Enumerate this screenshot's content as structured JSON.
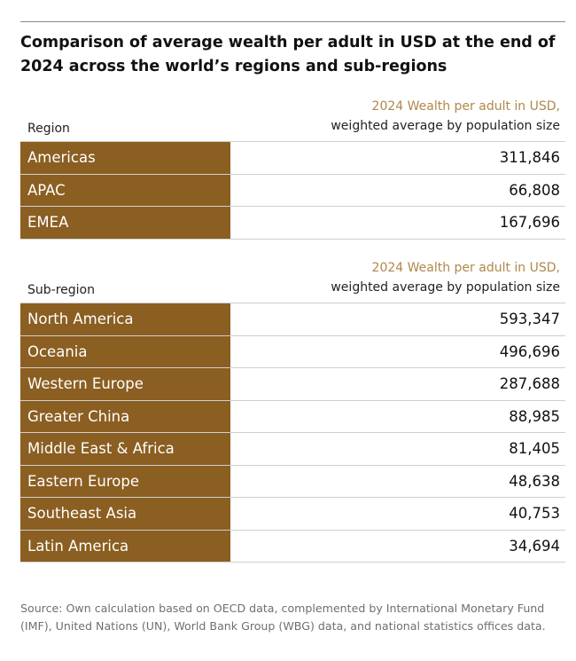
{
  "title": "Comparison of average wealth per adult in USD at the end of 2024 across the world’s regions and sub-regions",
  "region_table": {
    "col_label": "Region",
    "value_header_line1": "2024 Wealth per adult in USD,",
    "value_header_line2": "weighted average by population size",
    "rows": [
      {
        "name": "Americas",
        "value": "311,846"
      },
      {
        "name": "APAC",
        "value": "66,808"
      },
      {
        "name": "EMEA",
        "value": "167,696"
      }
    ]
  },
  "subregion_table": {
    "col_label": "Sub-region",
    "value_header_line1": "2024 Wealth per adult in USD,",
    "value_header_line2": "weighted average by population size",
    "rows": [
      {
        "name": "North America",
        "value": "593,347"
      },
      {
        "name": "Oceania",
        "value": "496,696"
      },
      {
        "name": "Western Europe",
        "value": "287,688"
      },
      {
        "name": "Greater China",
        "value": "88,985"
      },
      {
        "name": "Middle East & Africa",
        "value": "81,405"
      },
      {
        "name": "Eastern Europe",
        "value": "48,638"
      },
      {
        "name": "Southeast Asia",
        "value": "40,753"
      },
      {
        "name": "Latin America",
        "value": "34,694"
      }
    ]
  },
  "source": "Source: Own calculation based on OECD data, complemented by International Monetary Fund (IMF), United Nations (UN), World Bank Group (WBG) data, and national statistics offices data.",
  "colors": {
    "label_fill": "#8b5e21",
    "header_accent": "#b0884a",
    "rule": "#cfcfcf"
  },
  "chart_data": [
    {
      "type": "table",
      "columns": [
        "Region",
        "2024 Wealth per adult in USD, weighted average by population size"
      ],
      "categories": [
        "Americas",
        "APAC",
        "EMEA"
      ],
      "values": [
        311846,
        66808,
        167696
      ]
    },
    {
      "type": "table",
      "columns": [
        "Sub-region",
        "2024 Wealth per adult in USD, weighted average by population size"
      ],
      "categories": [
        "North America",
        "Oceania",
        "Western Europe",
        "Greater China",
        "Middle East & Africa",
        "Eastern Europe",
        "Southeast Asia",
        "Latin America"
      ],
      "values": [
        593347,
        496696,
        287688,
        88985,
        81405,
        48638,
        40753,
        34694
      ]
    }
  ]
}
